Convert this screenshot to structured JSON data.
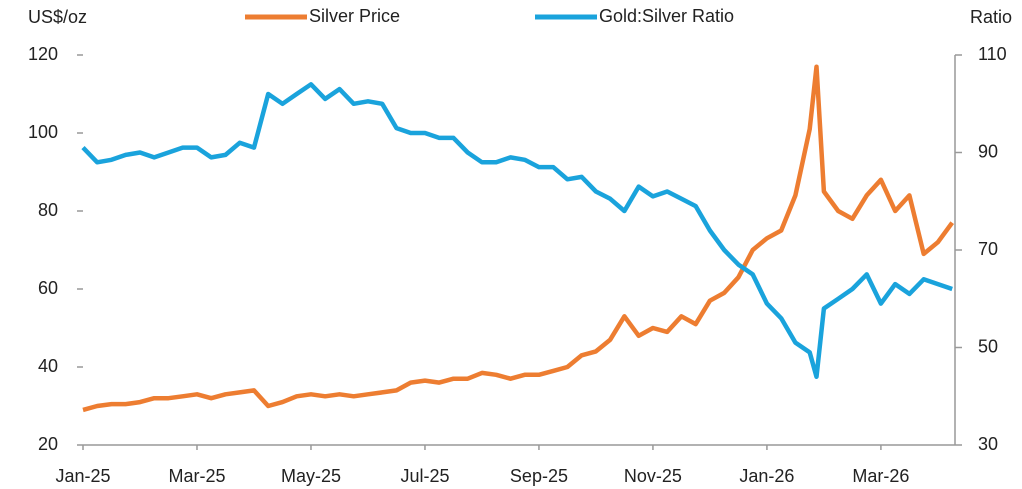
{
  "chart_data": {
    "type": "line",
    "y_label": "US$/oz",
    "y2_label": "Ratio",
    "x": [
      0,
      0.25,
      0.5,
      0.75,
      1,
      1.25,
      1.5,
      1.75,
      2,
      2.25,
      2.5,
      2.75,
      3,
      3.25,
      3.5,
      3.75,
      4,
      4.25,
      4.5,
      4.75,
      5,
      5.25,
      5.5,
      5.75,
      6,
      6.25,
      6.5,
      6.75,
      7,
      7.25,
      7.5,
      7.75,
      8,
      8.25,
      8.5,
      8.75,
      9,
      9.25,
      9.5,
      9.75,
      10,
      10.25,
      10.5,
      10.75,
      11,
      11.25,
      11.5,
      11.75,
      12,
      12.25,
      12.5,
      12.75,
      12.87,
      13,
      13.25,
      13.5,
      13.75,
      14,
      14.25,
      14.5,
      14.75,
      15,
      15.25
    ],
    "xlim": [
      0,
      15.3
    ],
    "xticks": [
      {
        "value": 0,
        "label": "Jan-25"
      },
      {
        "value": 2,
        "label": "Mar-25"
      },
      {
        "value": 4,
        "label": "May-25"
      },
      {
        "value": 6,
        "label": "Jul-25"
      },
      {
        "value": 8,
        "label": "Sep-25"
      },
      {
        "value": 10,
        "label": "Nov-25"
      },
      {
        "value": 12,
        "label": "Jan-26"
      },
      {
        "value": 14,
        "label": "Mar-26"
      }
    ],
    "ylim": [
      20,
      120
    ],
    "yticks": [
      20,
      40,
      60,
      80,
      100,
      120
    ],
    "y2lim": [
      30,
      110
    ],
    "y2ticks": [
      30,
      50,
      70,
      90,
      110
    ],
    "series": [
      {
        "name": "Silver Price",
        "color": "#ed7d31",
        "values": [
          29,
          30,
          30.5,
          30.5,
          31,
          32,
          32,
          32.5,
          33,
          32,
          33,
          33.5,
          34,
          30,
          31,
          32.5,
          33,
          32.5,
          33,
          32.5,
          33,
          33.5,
          34,
          36,
          36.5,
          36,
          37,
          37,
          38.5,
          38,
          37,
          38,
          38,
          39,
          40,
          43,
          44,
          47,
          53,
          48,
          50,
          49,
          53,
          51,
          57,
          59,
          63,
          70,
          73,
          75,
          84,
          101,
          117,
          85,
          80,
          78,
          84,
          88,
          80,
          84,
          69,
          72,
          77
        ]
      },
      {
        "name": "Gold:Silver Ratio",
        "color": "#1aa3dc",
        "axis": "y2",
        "values": [
          91,
          88,
          88.5,
          89.5,
          90,
          89,
          90,
          91,
          91,
          89,
          89.5,
          92,
          91,
          102,
          100,
          102,
          104,
          101,
          103,
          100,
          100.5,
          100,
          95,
          94,
          94,
          93,
          93,
          90,
          88,
          88,
          89,
          88.5,
          87,
          87,
          84.5,
          85,
          82,
          80.5,
          78,
          83,
          81,
          82,
          80.5,
          79,
          74,
          70,
          67,
          65,
          59,
          56,
          51,
          49,
          44,
          58,
          60,
          62,
          65,
          59,
          63,
          61,
          64,
          63,
          62
        ]
      }
    ]
  }
}
